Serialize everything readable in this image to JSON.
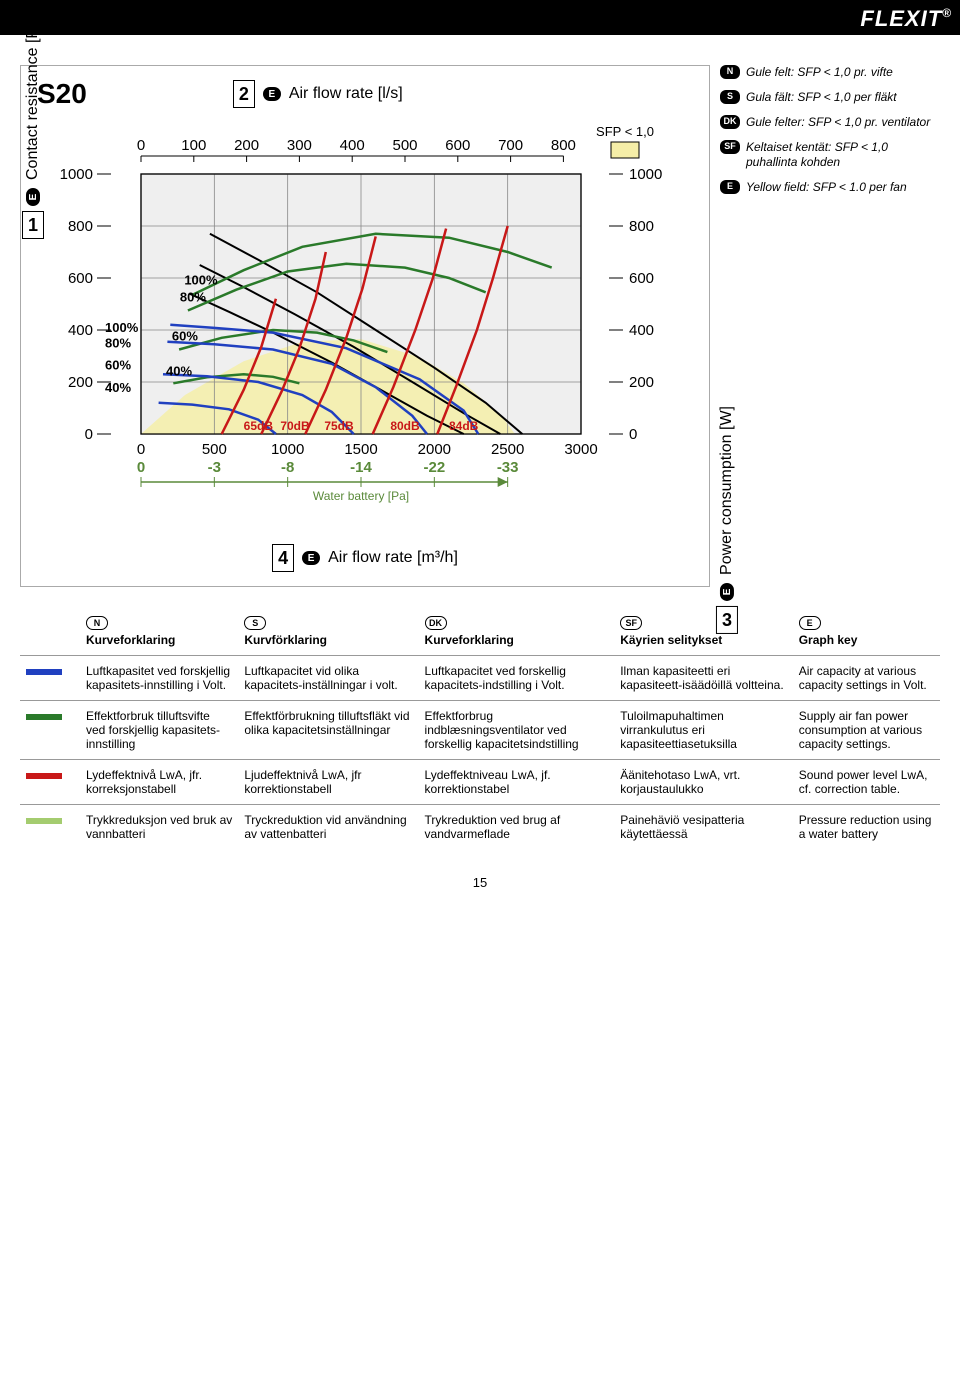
{
  "brand": "FLEXIT",
  "model": "S20",
  "axis_top_title": "Air flow rate [l/s]",
  "axis_left_title": "Contact resistance [Pa]",
  "axis_right_title": "Power consumption [W]",
  "axis_bottom_title": "Air flow rate [m³/h]",
  "water_battery_label": "Water battery [Pa]",
  "sfp_label": "SFP < 1,0",
  "page_number": "15",
  "chart": {
    "top_x_ticks": [
      0,
      100,
      200,
      300,
      400,
      500,
      600,
      700,
      800
    ],
    "bottom_x_ticks": [
      0,
      500,
      1000,
      1500,
      2000,
      2500,
      3000
    ],
    "y_left_ticks": [
      0,
      200,
      400,
      600,
      800,
      1000
    ],
    "y_right_ticks": [
      0,
      200,
      400,
      600,
      800,
      1000
    ],
    "water_battery_ticks": [
      0,
      -3,
      -8,
      -14,
      -22,
      -33
    ],
    "y_min": 0,
    "y_max": 1000,
    "x_min_m3h": 0,
    "x_max_m3h": 3000,
    "grid_color": "#888888",
    "bg_color": "#efefef",
    "sfp_fill": "#f5eea8",
    "left_pct_labels": [
      "100%",
      "80%",
      "60%",
      "40%"
    ],
    "green_pct_labels": [
      "100%",
      "80%",
      "60%",
      "40%"
    ],
    "db_labels": [
      "65dB",
      "70dB",
      "75dB",
      "80dB",
      "84dB"
    ],
    "db_label_x_m3h": [
      800,
      1050,
      1350,
      1800,
      2200
    ],
    "blue_curves": [
      [
        [
          200,
          420
        ],
        [
          500,
          408
        ],
        [
          900,
          390
        ],
        [
          1400,
          330
        ],
        [
          1900,
          210
        ],
        [
          2200,
          90
        ],
        [
          2300,
          0
        ]
      ],
      [
        [
          180,
          355
        ],
        [
          500,
          345
        ],
        [
          900,
          325
        ],
        [
          1300,
          270
        ],
        [
          1600,
          180
        ],
        [
          1850,
          70
        ],
        [
          1950,
          0
        ]
      ],
      [
        [
          150,
          230
        ],
        [
          450,
          222
        ],
        [
          800,
          200
        ],
        [
          1100,
          150
        ],
        [
          1300,
          85
        ],
        [
          1450,
          0
        ]
      ],
      [
        [
          120,
          120
        ],
        [
          350,
          113
        ],
        [
          600,
          95
        ],
        [
          800,
          55
        ],
        [
          920,
          0
        ]
      ]
    ],
    "green_curves": [
      [
        [
          350,
          535
        ],
        [
          700,
          630
        ],
        [
          1100,
          720
        ],
        [
          1600,
          770
        ],
        [
          2100,
          755
        ],
        [
          2500,
          700
        ],
        [
          2800,
          640
        ]
      ],
      [
        [
          320,
          475
        ],
        [
          650,
          555
        ],
        [
          1000,
          625
        ],
        [
          1400,
          655
        ],
        [
          1800,
          640
        ],
        [
          2100,
          600
        ],
        [
          2350,
          545
        ]
      ],
      [
        [
          260,
          325
        ],
        [
          550,
          370
        ],
        [
          900,
          400
        ],
        [
          1200,
          390
        ],
        [
          1450,
          360
        ],
        [
          1680,
          315
        ]
      ],
      [
        [
          220,
          195
        ],
        [
          450,
          218
        ],
        [
          700,
          230
        ],
        [
          900,
          220
        ],
        [
          1080,
          195
        ]
      ]
    ],
    "red_curves": [
      [
        [
          550,
          0
        ],
        [
          700,
          170
        ],
        [
          820,
          335
        ],
        [
          920,
          520
        ]
      ],
      [
        [
          820,
          0
        ],
        [
          960,
          165
        ],
        [
          1080,
          330
        ],
        [
          1190,
          520
        ],
        [
          1260,
          700
        ]
      ],
      [
        [
          1120,
          0
        ],
        [
          1260,
          170
        ],
        [
          1400,
          370
        ],
        [
          1510,
          560
        ],
        [
          1600,
          760
        ]
      ],
      [
        [
          1580,
          0
        ],
        [
          1720,
          180
        ],
        [
          1870,
          400
        ],
        [
          1990,
          600
        ],
        [
          2080,
          790
        ]
      ],
      [
        [
          2020,
          0
        ],
        [
          2150,
          185
        ],
        [
          2290,
          400
        ],
        [
          2400,
          600
        ],
        [
          2500,
          800
        ]
      ]
    ],
    "black_curves": [
      [
        [
          330,
          540
        ],
        [
          600,
          470
        ],
        [
          900,
          390
        ],
        [
          1300,
          275
        ],
        [
          1650,
          165
        ],
        [
          1950,
          70
        ],
        [
          2200,
          0
        ]
      ],
      [
        [
          400,
          650
        ],
        [
          700,
          565
        ],
        [
          1050,
          460
        ],
        [
          1450,
          335
        ],
        [
          1850,
          200
        ],
        [
          2200,
          80
        ],
        [
          2450,
          0
        ]
      ],
      [
        [
          470,
          770
        ],
        [
          800,
          670
        ],
        [
          1200,
          545
        ],
        [
          1600,
          400
        ],
        [
          2000,
          255
        ],
        [
          2350,
          120
        ],
        [
          2600,
          0
        ]
      ]
    ],
    "sfp_poly": [
      [
        0,
        0
      ],
      [
        300,
        150
      ],
      [
        700,
        280
      ],
      [
        1100,
        355
      ],
      [
        1500,
        365
      ],
      [
        1900,
        295
      ],
      [
        2200,
        195
      ],
      [
        2450,
        75
      ],
      [
        2550,
        0
      ]
    ]
  },
  "side_legend": [
    {
      "code": "N",
      "text": "Gule felt: SFP < 1,0 pr. vifte"
    },
    {
      "code": "S",
      "text": "Gula fält: SFP < 1,0 per fläkt"
    },
    {
      "code": "DK",
      "text": "Gule felter: SFP < 1,0 pr. ventilator"
    },
    {
      "code": "SF",
      "text": "Keltaiset kentät: SFP < 1,0 puhallinta kohden"
    },
    {
      "code": "E",
      "text": "Yellow field: SFP < 1.0 per fan"
    }
  ],
  "table": {
    "lang_codes": [
      "N",
      "S",
      "DK",
      "SF",
      "E"
    ],
    "headers": [
      "Kurveforklaring",
      "Kurvförklaring",
      "Kurveforklaring",
      "Käyrien selitykset",
      "Graph key"
    ],
    "rows": [
      {
        "swatch": "sw-blue",
        "cells": [
          "Luftkapasitet ved forskjellig kapasitets-innstilling i Volt.",
          "Luftkapacitet vid olika kapacitets-inställningar i volt.",
          "Luftkapacitet ved forskellig kapacitets-indstilling i Volt.",
          "Ilman kapasiteetti eri kapasiteett-isäädöillä voltteina.",
          "Air capacity at various capacity settings in Volt."
        ]
      },
      {
        "swatch": "sw-green",
        "cells": [
          "Effektforbruk tilluftsvifte ved forskjellig kapasitets-innstilling",
          "Effektförbrukning tilluftsfläkt vid olika kapacitetsinställningar",
          "Effektforbrug indblæsningsventilator ved forskellig kapacitetsindstilling",
          "Tuloilmapuhaltimen virrankulutus eri kapasiteettiasetuksilla",
          "Supply air fan power consumption at various capacity settings."
        ]
      },
      {
        "swatch": "sw-red",
        "cells": [
          "Lydeffektnivå LwA, jfr. korreksjonstabell",
          "Ljudeffektnivå LwA, jfr korrektionstabell",
          "Lydeffektniveau LwA, jf. korrektionstabel",
          "Äänitehotaso LwA, vrt. korjaustaulukko",
          "Sound power level LwA, cf. correction table."
        ]
      },
      {
        "swatch": "sw-lime",
        "cells": [
          "Trykkreduksjon ved bruk av vannbatteri",
          "Tryckreduktion vid användning av vattenbatteri",
          "Trykreduktion ved brug af vandvarmeflade",
          "Painehäviö vesipatteria käytettäessä",
          "Pressure reduction using a water battery"
        ]
      }
    ]
  }
}
